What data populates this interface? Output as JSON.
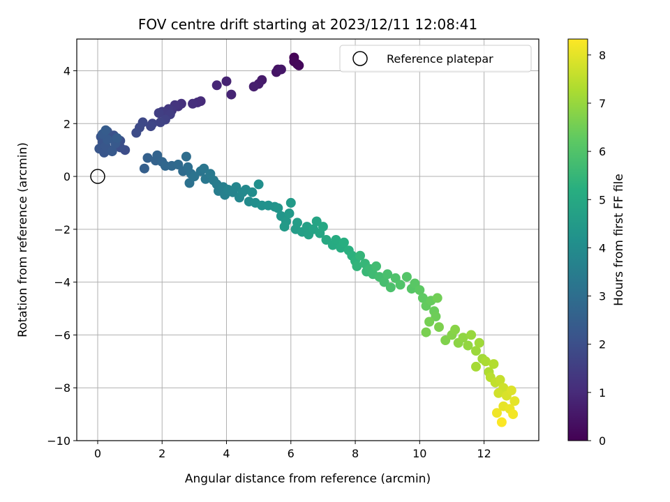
{
  "chart_data": {
    "type": "scatter",
    "title": "FOV centre drift starting at 2023/12/11 12:08:41",
    "xlabel": "Angular distance from reference (arcmin)",
    "ylabel": "Rotation from reference (arcmin)",
    "xlim": [
      -0.65,
      13.7
    ],
    "ylim": [
      -10,
      5.2
    ],
    "xticks": [
      0,
      2,
      4,
      6,
      8,
      10,
      12
    ],
    "yticks": [
      -10,
      -8,
      -6,
      -4,
      -2,
      0,
      2,
      4
    ],
    "grid": true,
    "legend": {
      "placement": "top-right",
      "entries": [
        "Reference platepar"
      ]
    },
    "reference_point": {
      "name": "Reference platepar",
      "x": 0,
      "y": 0
    },
    "colorbar": {
      "label": "Hours from first FF file",
      "range": [
        0,
        8.33
      ],
      "ticks": [
        0,
        1,
        2,
        3,
        4,
        5,
        6,
        7,
        8
      ],
      "colormap": "viridis"
    },
    "series": [
      {
        "points": [
          [
            6.1,
            4.5,
            0.05
          ],
          [
            6.2,
            4.25,
            0.1
          ],
          [
            6.1,
            4.35,
            0.12
          ],
          [
            6.25,
            4.2,
            0.15
          ],
          [
            5.6,
            4.05,
            0.4
          ],
          [
            5.55,
            3.95,
            0.45
          ],
          [
            5.7,
            4.05,
            0.5
          ],
          [
            5.1,
            3.65,
            0.6
          ],
          [
            5.0,
            3.5,
            0.65
          ],
          [
            4.85,
            3.4,
            0.7
          ],
          [
            4.0,
            3.6,
            0.8
          ],
          [
            4.15,
            3.1,
            0.85
          ],
          [
            3.7,
            3.45,
            0.9
          ],
          [
            3.2,
            2.85,
            1.0
          ],
          [
            3.1,
            2.8,
            1.05
          ],
          [
            2.95,
            2.75,
            1.1
          ],
          [
            2.6,
            2.75,
            1.15
          ],
          [
            2.5,
            2.65,
            1.2
          ],
          [
            2.4,
            2.7,
            1.25
          ],
          [
            2.3,
            2.5,
            1.3
          ],
          [
            2.2,
            2.55,
            1.35
          ],
          [
            2.1,
            2.4,
            1.4
          ],
          [
            2.0,
            2.45,
            1.45
          ],
          [
            2.25,
            2.35,
            1.5
          ],
          [
            1.9,
            2.4,
            1.55
          ],
          [
            2.1,
            2.15,
            1.6
          ],
          [
            1.95,
            2.05,
            1.65
          ],
          [
            1.7,
            2.0,
            1.7
          ],
          [
            1.65,
            1.9,
            1.75
          ],
          [
            1.4,
            2.05,
            1.8
          ],
          [
            1.3,
            1.85,
            1.85
          ],
          [
            1.2,
            1.65,
            1.9
          ],
          [
            0.85,
            1.0,
            1.95
          ],
          [
            0.7,
            1.1,
            2.0
          ],
          [
            0.7,
            1.35,
            2.0
          ],
          [
            0.5,
            1.55,
            2.05
          ],
          [
            0.4,
            1.45,
            2.05
          ],
          [
            0.3,
            1.7,
            2.1
          ],
          [
            0.2,
            1.55,
            2.1
          ],
          [
            0.1,
            1.5,
            2.15
          ],
          [
            0.15,
            1.3,
            2.15
          ],
          [
            0.05,
            1.05,
            2.2
          ],
          [
            0.2,
            0.9,
            2.2
          ],
          [
            0.35,
            1.0,
            2.25
          ],
          [
            0.25,
            1.15,
            2.25
          ],
          [
            0.45,
            0.95,
            2.3
          ],
          [
            0.55,
            1.25,
            2.3
          ],
          [
            0.3,
            1.4,
            2.35
          ],
          [
            0.15,
            1.6,
            2.35
          ],
          [
            0.25,
            1.75,
            2.4
          ],
          [
            0.6,
            1.45,
            2.4
          ],
          [
            1.45,
            0.3,
            2.5
          ],
          [
            1.55,
            0.7,
            2.55
          ],
          [
            1.8,
            0.6,
            2.6
          ],
          [
            1.85,
            0.8,
            2.65
          ],
          [
            2.0,
            0.55,
            2.7
          ],
          [
            2.1,
            0.4,
            2.75
          ],
          [
            2.3,
            0.4,
            2.8
          ],
          [
            2.5,
            0.45,
            2.85
          ],
          [
            2.65,
            0.2,
            2.9
          ],
          [
            2.75,
            0.75,
            2.95
          ],
          [
            2.8,
            0.35,
            3.0
          ],
          [
            2.9,
            0.1,
            3.05
          ],
          [
            2.85,
            -0.25,
            3.1
          ],
          [
            3.0,
            0.0,
            3.15
          ],
          [
            3.2,
            0.2,
            3.2
          ],
          [
            3.3,
            0.3,
            3.25
          ],
          [
            3.35,
            -0.1,
            3.3
          ],
          [
            3.5,
            0.1,
            3.35
          ],
          [
            3.6,
            -0.15,
            3.4
          ],
          [
            3.7,
            -0.3,
            3.45
          ],
          [
            3.75,
            -0.55,
            3.5
          ],
          [
            3.9,
            -0.4,
            3.55
          ],
          [
            3.95,
            -0.7,
            3.6
          ],
          [
            4.05,
            -0.5,
            3.65
          ],
          [
            4.2,
            -0.6,
            3.7
          ],
          [
            4.3,
            -0.4,
            3.75
          ],
          [
            4.4,
            -0.8,
            3.8
          ],
          [
            4.5,
            -0.6,
            3.85
          ],
          [
            4.6,
            -0.5,
            3.9
          ],
          [
            4.7,
            -0.95,
            3.95
          ],
          [
            4.8,
            -0.6,
            4.0
          ],
          [
            4.9,
            -1.0,
            4.05
          ],
          [
            5.0,
            -0.3,
            4.1
          ],
          [
            5.1,
            -1.1,
            4.15
          ],
          [
            5.3,
            -1.1,
            4.2
          ],
          [
            5.5,
            -1.15,
            4.25
          ],
          [
            5.6,
            -1.2,
            4.3
          ],
          [
            5.7,
            -1.5,
            4.35
          ],
          [
            5.85,
            -1.7,
            4.4
          ],
          [
            5.95,
            -1.4,
            4.45
          ],
          [
            5.8,
            -1.9,
            4.5
          ],
          [
            6.0,
            -1.0,
            4.5
          ],
          [
            6.15,
            -2.0,
            4.55
          ],
          [
            6.2,
            -1.75,
            4.6
          ],
          [
            6.35,
            -2.1,
            4.65
          ],
          [
            6.5,
            -1.9,
            4.7
          ],
          [
            6.55,
            -2.2,
            4.75
          ],
          [
            6.7,
            -2.0,
            4.8
          ],
          [
            6.8,
            -1.7,
            4.85
          ],
          [
            6.9,
            -2.15,
            4.9
          ],
          [
            7.0,
            -1.9,
            4.95
          ],
          [
            7.1,
            -2.4,
            5.0
          ],
          [
            7.3,
            -2.6,
            5.05
          ],
          [
            7.4,
            -2.4,
            5.1
          ],
          [
            7.55,
            -2.7,
            5.15
          ],
          [
            7.65,
            -2.5,
            5.2
          ],
          [
            7.8,
            -2.8,
            5.25
          ],
          [
            7.9,
            -3.0,
            5.3
          ],
          [
            8.0,
            -3.2,
            5.35
          ],
          [
            8.05,
            -3.4,
            5.4
          ],
          [
            8.15,
            -3.0,
            5.45
          ],
          [
            8.3,
            -3.3,
            5.5
          ],
          [
            8.35,
            -3.6,
            5.55
          ],
          [
            8.45,
            -3.5,
            5.6
          ],
          [
            8.55,
            -3.7,
            5.65
          ],
          [
            8.65,
            -3.4,
            5.7
          ],
          [
            8.75,
            -3.8,
            5.75
          ],
          [
            8.9,
            -4.0,
            5.8
          ],
          [
            9.0,
            -3.7,
            5.85
          ],
          [
            9.1,
            -4.2,
            5.9
          ],
          [
            9.25,
            -3.85,
            5.95
          ],
          [
            9.4,
            -4.1,
            6.0
          ],
          [
            9.6,
            -3.8,
            6.05
          ],
          [
            9.75,
            -4.25,
            6.1
          ],
          [
            9.85,
            -4.05,
            6.15
          ],
          [
            10.0,
            -4.3,
            6.2
          ],
          [
            10.1,
            -4.6,
            6.25
          ],
          [
            10.2,
            -4.9,
            6.3
          ],
          [
            10.35,
            -4.7,
            6.35
          ],
          [
            10.45,
            -5.1,
            6.4
          ],
          [
            10.5,
            -5.3,
            6.45
          ],
          [
            10.55,
            -4.6,
            6.5
          ],
          [
            10.3,
            -5.5,
            6.55
          ],
          [
            10.2,
            -5.9,
            6.6
          ],
          [
            10.6,
            -5.7,
            6.65
          ],
          [
            10.8,
            -6.2,
            6.7
          ],
          [
            11.0,
            -6.0,
            6.75
          ],
          [
            11.1,
            -5.8,
            6.8
          ],
          [
            11.2,
            -6.3,
            6.85
          ],
          [
            11.35,
            -6.1,
            6.9
          ],
          [
            11.5,
            -6.4,
            6.95
          ],
          [
            11.6,
            -6.0,
            7.0
          ],
          [
            11.75,
            -6.6,
            7.05
          ],
          [
            11.85,
            -6.3,
            7.1
          ],
          [
            11.95,
            -6.9,
            7.15
          ],
          [
            11.75,
            -7.2,
            7.2
          ],
          [
            12.05,
            -7.0,
            7.25
          ],
          [
            12.15,
            -7.4,
            7.3
          ],
          [
            12.3,
            -7.1,
            7.35
          ],
          [
            12.2,
            -7.6,
            7.45
          ],
          [
            12.35,
            -7.8,
            7.55
          ],
          [
            12.5,
            -7.7,
            7.6
          ],
          [
            12.6,
            -8.0,
            7.7
          ],
          [
            12.45,
            -8.2,
            7.75
          ],
          [
            12.7,
            -8.3,
            7.85
          ],
          [
            12.85,
            -8.1,
            7.9
          ],
          [
            12.95,
            -8.5,
            8.0
          ],
          [
            12.6,
            -8.7,
            8.05
          ],
          [
            12.8,
            -8.8,
            8.1
          ],
          [
            12.4,
            -8.95,
            8.15
          ],
          [
            12.9,
            -9.0,
            8.2
          ],
          [
            12.55,
            -9.3,
            8.3
          ]
        ]
      }
    ]
  }
}
